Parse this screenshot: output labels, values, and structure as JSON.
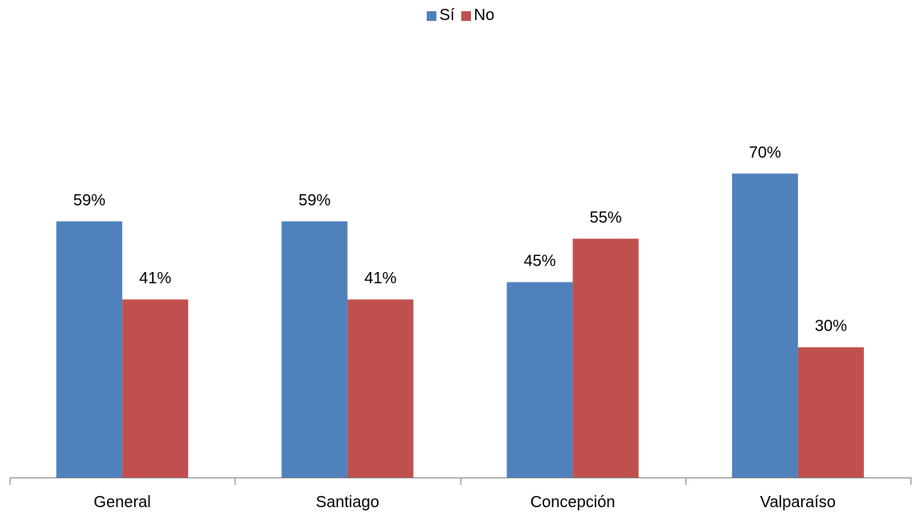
{
  "chart_data": {
    "type": "bar",
    "title": "",
    "xlabel": "",
    "ylabel": "",
    "categories": [
      "General",
      "Santiago",
      "Concepción",
      "Valparaíso"
    ],
    "series": [
      {
        "name": "Sí",
        "color": "#4F81BD",
        "values": [
          59,
          59,
          45,
          70
        ],
        "labels": [
          "59%",
          "59%",
          "45%",
          "70%"
        ]
      },
      {
        "name": "No",
        "color": "#C0504D",
        "values": [
          41,
          41,
          55,
          30
        ],
        "labels": [
          "41%",
          "41%",
          "55%",
          "30%"
        ]
      }
    ],
    "ylim": [
      0,
      100
    ],
    "unit": "%",
    "legend_position": "top-center",
    "grid": false,
    "axis_color": "#808080"
  }
}
